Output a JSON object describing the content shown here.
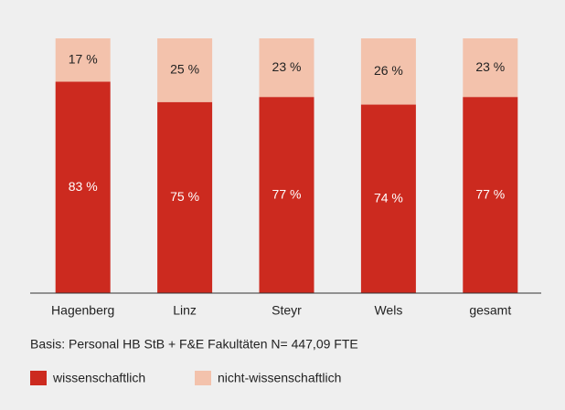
{
  "chart_data": {
    "type": "stacked_bar",
    "categories": [
      "Hagenberg",
      "Linz",
      "Steyr",
      "Wels",
      "gesamt"
    ],
    "series": [
      {
        "name": "wissenschaftlich",
        "color": "#cc2a1f",
        "values": [
          83,
          75,
          77,
          74,
          77
        ],
        "value_labels": [
          "83 %",
          "75 %",
          "77 %",
          "74 %",
          "77 %"
        ]
      },
      {
        "name": "nicht-wissenschaftlich",
        "color": "#f3c2ac",
        "values": [
          17,
          25,
          23,
          26,
          23
        ],
        "value_labels": [
          "17 %",
          "25 %",
          "23 %",
          "26 %",
          "23 %"
        ]
      }
    ],
    "ylim": [
      0,
      100
    ],
    "annotation": "Basis: Personal HB StB + F&E Fakultäten N= 447,09 FTE"
  }
}
